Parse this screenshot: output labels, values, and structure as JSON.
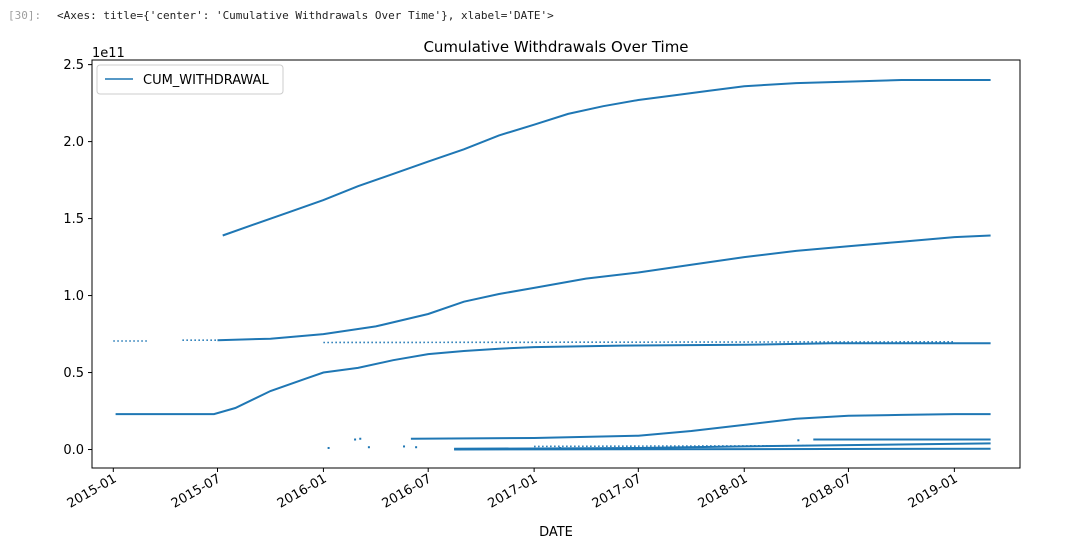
{
  "cell": {
    "prompt": "[30]:",
    "output_repr": "<Axes: title={'center': 'Cumulative Withdrawals Over Time'}, xlabel='DATE'>"
  },
  "chart_data": {
    "type": "line",
    "title": "Cumulative Withdrawals Over Time",
    "xlabel": "DATE",
    "ylabel": "",
    "y_offset_label": "1e11",
    "x_ticks": [
      "2015-01",
      "2015-07",
      "2016-01",
      "2016-07",
      "2017-01",
      "2017-07",
      "2018-01",
      "2018-07",
      "2019-01"
    ],
    "y_ticks": [
      "0.0",
      "0.5",
      "1.0",
      "1.5",
      "2.0",
      "2.5"
    ],
    "xlim": [
      "2014-11-25",
      "2019-04-25"
    ],
    "ylim": [
      -0.12,
      2.53
    ],
    "y_scale": "1e11",
    "grid": false,
    "legend_position": "top-left",
    "color": "#1f77b4",
    "series": [
      {
        "name": "CUM_WITHDRAWAL",
        "line_segments": [
          {
            "x": [
              "2015-07-10",
              "2015-09-01",
              "2015-11-01",
              "2016-01-01",
              "2016-03-01",
              "2016-05-01",
              "2016-07-01",
              "2016-09-01",
              "2016-11-01",
              "2017-01-01",
              "2017-03-01",
              "2017-05-01",
              "2017-07-01",
              "2017-09-01",
              "2017-11-01",
              "2018-01-01",
              "2018-04-01",
              "2018-07-01",
              "2018-10-01",
              "2019-01-01",
              "2019-03-05"
            ],
            "y": [
              1.39,
              1.46,
              1.54,
              1.62,
              1.71,
              1.79,
              1.87,
              1.95,
              2.04,
              2.11,
              2.18,
              2.23,
              2.27,
              2.3,
              2.33,
              2.36,
              2.38,
              2.39,
              2.4,
              2.4,
              2.4
            ]
          },
          {
            "x": [
              "2015-07-01",
              "2015-10-01",
              "2016-01-01",
              "2016-04-01",
              "2016-07-01",
              "2016-09-01",
              "2016-11-01",
              "2017-01-01",
              "2017-04-01",
              "2017-07-01",
              "2017-10-01",
              "2018-01-01",
              "2018-04-01",
              "2018-07-01",
              "2018-10-01",
              "2019-01-01",
              "2019-03-05"
            ],
            "y": [
              0.71,
              0.72,
              0.75,
              0.8,
              0.88,
              0.96,
              1.01,
              1.05,
              1.11,
              1.15,
              1.2,
              1.25,
              1.29,
              1.32,
              1.35,
              1.38,
              1.39
            ]
          },
          {
            "x": [
              "2015-01-05",
              "2015-03-01",
              "2015-05-01",
              "2015-06-25",
              "2015-08-01",
              "2015-10-01",
              "2015-12-01",
              "2016-01-01",
              "2016-03-01",
              "2016-05-01",
              "2016-07-01",
              "2016-09-01",
              "2016-11-01",
              "2017-01-01",
              "2017-06-01",
              "2018-01-01",
              "2018-06-01",
              "2019-03-05"
            ],
            "y": [
              0.23,
              0.23,
              0.23,
              0.23,
              0.27,
              0.38,
              0.46,
              0.5,
              0.53,
              0.58,
              0.62,
              0.64,
              0.655,
              0.665,
              0.675,
              0.68,
              0.69,
              0.69
            ]
          },
          {
            "x": [
              "2016-06-01",
              "2017-01-01",
              "2017-07-01",
              "2017-10-01",
              "2018-01-01",
              "2018-04-01",
              "2018-07-01",
              "2018-10-01",
              "2019-01-01",
              "2019-03-05"
            ],
            "y": [
              0.07,
              0.075,
              0.09,
              0.12,
              0.16,
              0.2,
              0.22,
              0.225,
              0.23,
              0.23
            ]
          },
          {
            "x": [
              "2018-05-01",
              "2019-03-05"
            ],
            "y": [
              0.065,
              0.065
            ]
          },
          {
            "x": [
              "2016-08-15",
              "2017-07-01",
              "2018-01-01",
              "2019-03-05"
            ],
            "y": [
              0.005,
              0.01,
              0.02,
              0.04
            ]
          },
          {
            "x": [
              "2016-08-15",
              "2019-03-05"
            ],
            "y": [
              0.0,
              0.005
            ]
          }
        ],
        "dashed_segments": [
          {
            "x": [
              "2015-01-01",
              "2015-03-01"
            ],
            "y": [
              0.705,
              0.705
            ]
          },
          {
            "x": [
              "2015-05-01",
              "2015-07-01"
            ],
            "y": [
              0.71,
              0.71
            ]
          },
          {
            "x": [
              "2016-01-01",
              "2019-01-01"
            ],
            "y": [
              0.695,
              0.7
            ]
          },
          {
            "x": [
              "2017-01-01",
              "2018-05-01"
            ],
            "y": [
              0.02,
              0.025
            ]
          }
        ],
        "scatter": [
          {
            "x": "2016-01-10",
            "y": 0.01
          },
          {
            "x": "2016-02-25",
            "y": 0.065
          },
          {
            "x": "2016-03-05",
            "y": 0.07
          },
          {
            "x": "2016-03-20",
            "y": 0.015
          },
          {
            "x": "2016-05-20",
            "y": 0.02
          },
          {
            "x": "2016-06-10",
            "y": 0.015
          },
          {
            "x": "2017-02-15",
            "y": 0.01
          },
          {
            "x": "2017-03-05",
            "y": 0.005
          },
          {
            "x": "2018-04-05",
            "y": 0.06
          }
        ]
      }
    ]
  }
}
